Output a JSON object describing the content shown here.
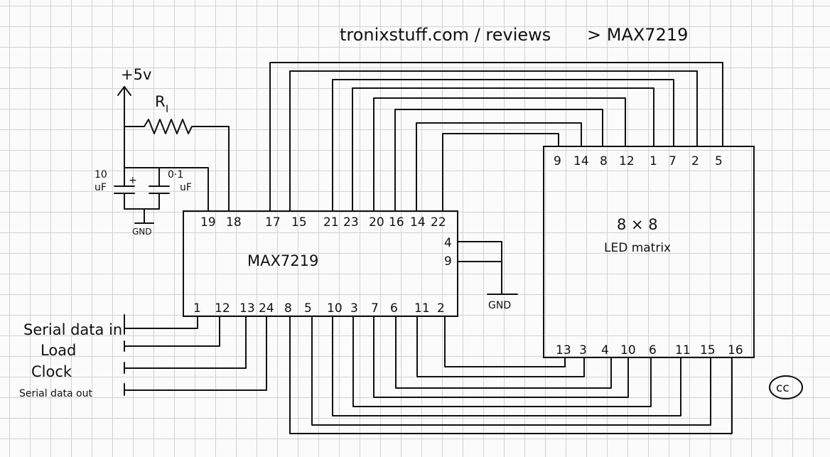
{
  "header": {
    "title": "tronixstuff.com / reviews",
    "subtitle": "> MAX7219"
  },
  "power": {
    "supply_label": "+5v",
    "resistor_label": "R",
    "resistor_subscript": "I",
    "ground_label": "GND"
  },
  "capacitors": [
    {
      "value_line1": "10",
      "value_line2": "uF",
      "polarity": "+"
    },
    {
      "value_line1": "0·1",
      "value_line2": "uF"
    }
  ],
  "ic": {
    "name": "MAX7219",
    "top_pins": [
      "19",
      "18",
      "17",
      "15",
      "21",
      "23",
      "20",
      "16",
      "14",
      "22"
    ],
    "bottom_pins": [
      "1",
      "12",
      "13",
      "24",
      "8",
      "5",
      "10",
      "3",
      "7",
      "6",
      "11",
      "2"
    ],
    "right_pins": [
      "4",
      "9"
    ],
    "right_ground_label": "GND"
  },
  "matrix": {
    "name_line1": "8 × 8",
    "name_line2": "LED matrix",
    "top_pins": [
      "9",
      "14",
      "8",
      "12",
      "1",
      "7",
      "2",
      "5"
    ],
    "bottom_pins": [
      "13",
      "3",
      "4",
      "10",
      "6",
      "11",
      "15",
      "16"
    ]
  },
  "inputs": [
    {
      "label": "Serial data in"
    },
    {
      "label": "Load"
    },
    {
      "label": "Clock"
    },
    {
      "label": "Serial data out"
    }
  ],
  "license_badge": "cc"
}
